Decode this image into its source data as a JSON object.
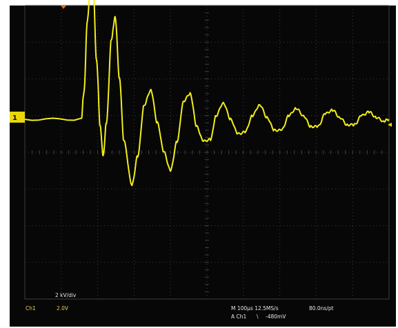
{
  "channel_marker": "1",
  "waveform_label": "2 kV/div",
  "status": {
    "channel": "Ch1",
    "scale": "2.0V",
    "timebase": "M 100µs 12.5MS/s",
    "record": "80.0ns/pt",
    "trigger_source": "A Ch1",
    "trigger_slope": "\\",
    "trigger_level": "-480mV"
  },
  "colors": {
    "trace": "#f2ee1a",
    "screen": "#070707",
    "grid": "#3f3f3f",
    "marker": "#e8d80a",
    "trigger_marker": "#e07010"
  },
  "waveform": {
    "description_units": "divisions",
    "baseline_div": 0.9,
    "samples": [
      [
        0.0,
        0.9
      ],
      [
        1.55,
        0.9
      ],
      [
        1.62,
        1.6
      ],
      [
        1.72,
        3.6
      ],
      [
        1.8,
        4.6
      ],
      [
        1.88,
        4.4
      ],
      [
        1.97,
        2.5
      ],
      [
        2.07,
        0.7
      ],
      [
        2.15,
        -0.1
      ],
      [
        2.24,
        0.8
      ],
      [
        2.38,
        3.1
      ],
      [
        2.48,
        3.7
      ],
      [
        2.6,
        2.0
      ],
      [
        2.72,
        0.3
      ],
      [
        2.94,
        -0.9
      ],
      [
        3.1,
        -0.1
      ],
      [
        3.28,
        1.3
      ],
      [
        3.46,
        1.7
      ],
      [
        3.64,
        0.8
      ],
      [
        3.82,
        0.0
      ],
      [
        4.0,
        -0.5
      ],
      [
        4.18,
        0.3
      ],
      [
        4.36,
        1.4
      ],
      [
        4.54,
        1.6
      ],
      [
        4.72,
        0.7
      ],
      [
        4.9,
        0.3
      ],
      [
        5.1,
        0.35
      ],
      [
        5.25,
        1.0
      ],
      [
        5.45,
        1.35
      ],
      [
        5.65,
        0.9
      ],
      [
        5.85,
        0.5
      ],
      [
        6.05,
        0.55
      ],
      [
        6.25,
        1.0
      ],
      [
        6.45,
        1.3
      ],
      [
        6.65,
        0.95
      ],
      [
        6.85,
        0.6
      ],
      [
        7.05,
        0.6
      ],
      [
        7.25,
        1.0
      ],
      [
        7.45,
        1.2
      ],
      [
        7.65,
        1.0
      ],
      [
        7.85,
        0.7
      ],
      [
        8.05,
        0.7
      ],
      [
        8.25,
        1.05
      ],
      [
        8.45,
        1.15
      ],
      [
        8.65,
        0.95
      ],
      [
        8.85,
        0.75
      ],
      [
        9.05,
        0.75
      ],
      [
        9.25,
        1.0
      ],
      [
        9.45,
        1.1
      ],
      [
        9.65,
        0.95
      ],
      [
        9.85,
        0.85
      ],
      [
        10.0,
        0.9
      ]
    ]
  }
}
